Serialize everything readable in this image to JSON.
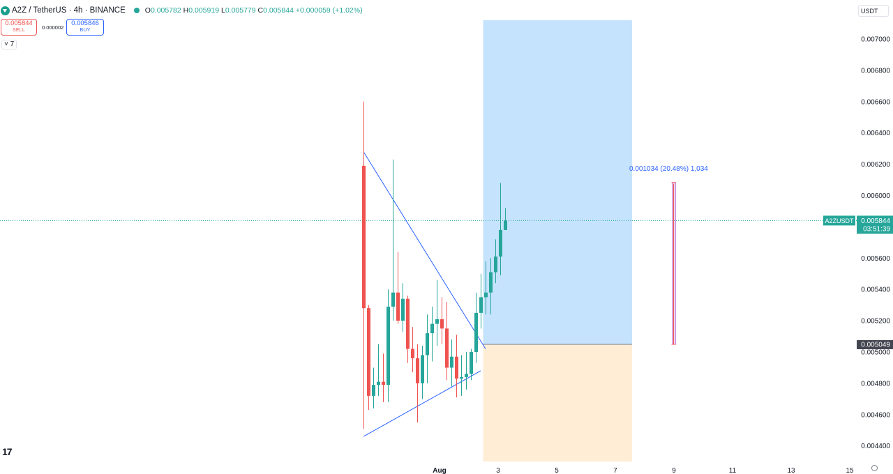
{
  "header": {
    "symbol": "A2Z / TetherUS · 4h · BINANCE",
    "o_label": "O",
    "o": "0.005782",
    "h_label": "H",
    "h": "0.005919",
    "l_label": "L",
    "l": "0.005779",
    "c_label": "C",
    "c": "0.005844",
    "change": "+0.000059 (+1.02%)"
  },
  "trade": {
    "sell_price": "0.005844",
    "sell_label": "SELL",
    "spread": "0.000002",
    "buy_price": "0.005846",
    "buy_label": "BUY"
  },
  "indicators_toggle": "˅ 7",
  "currency_button": "USDT",
  "price_axis": {
    "ticks": [
      {
        "v": 0.007,
        "label": "0.007000"
      },
      {
        "v": 0.0068,
        "label": "0.006800"
      },
      {
        "v": 0.0066,
        "label": "0.006600"
      },
      {
        "v": 0.0064,
        "label": "0.006400"
      },
      {
        "v": 0.0062,
        "label": "0.006200"
      },
      {
        "v": 0.006,
        "label": "0.006000"
      },
      {
        "v": 0.0056,
        "label": "0.005600"
      },
      {
        "v": 0.0054,
        "label": "0.005400"
      },
      {
        "v": 0.0052,
        "label": "0.005200"
      },
      {
        "v": 0.005,
        "label": "0.005000"
      },
      {
        "v": 0.0048,
        "label": "0.004800"
      },
      {
        "v": 0.0046,
        "label": "0.004600"
      },
      {
        "v": 0.0044,
        "label": "0.004400"
      }
    ],
    "current_symbol_badge": "A2ZUSDT",
    "current_price": "0.005844",
    "countdown": "03:51:39",
    "entry_price": "0.005049"
  },
  "time_axis": {
    "ticks": [
      {
        "t": 16,
        "label": "Aug"
      },
      {
        "t": 28,
        "label": "3"
      },
      {
        "t": 40,
        "label": "5"
      },
      {
        "t": 52,
        "label": "7"
      },
      {
        "t": 64,
        "label": "9"
      },
      {
        "t": 76,
        "label": "11"
      },
      {
        "t": 88,
        "label": "13"
      },
      {
        "t": 100,
        "label": "15"
      }
    ]
  },
  "measure_label": "0.001034 (20.48%) 1,034",
  "colors": {
    "up": "#26a69a",
    "down": "#ef5350",
    "trendline": "#2962ff",
    "profit_zone": "#bbdefb",
    "loss_zone": "#ffe0b2",
    "measure": "#9c27b0"
  },
  "chart_data": {
    "type": "candlestick",
    "candles": [
      [
        0.00619,
        0.0066,
        0.00451,
        0.00528
      ],
      [
        0.00528,
        0.0053,
        0.00463,
        0.00472
      ],
      [
        0.00472,
        0.0049,
        0.00464,
        0.00479
      ],
      [
        0.00479,
        0.00505,
        0.00472,
        0.00481
      ],
      [
        0.00481,
        0.00499,
        0.00468,
        0.00479
      ],
      [
        0.00479,
        0.0054,
        0.00468,
        0.00529
      ],
      [
        0.00529,
        0.00623,
        0.0052,
        0.00538
      ],
      [
        0.00538,
        0.00564,
        0.00518,
        0.0052
      ],
      [
        0.0052,
        0.00544,
        0.00513,
        0.00534
      ],
      [
        0.00534,
        0.00536,
        0.00493,
        0.00502
      ],
      [
        0.00502,
        0.00516,
        0.00487,
        0.00496
      ],
      [
        0.00496,
        0.00505,
        0.00455,
        0.0048
      ],
      [
        0.0048,
        0.00504,
        0.0047,
        0.00498
      ],
      [
        0.00498,
        0.00524,
        0.0048,
        0.00512
      ],
      [
        0.00512,
        0.00529,
        0.00494,
        0.00518
      ],
      [
        0.00518,
        0.00546,
        0.00504,
        0.00521
      ],
      [
        0.00521,
        0.00535,
        0.00505,
        0.00515
      ],
      [
        0.00515,
        0.00532,
        0.00482,
        0.0049
      ],
      [
        0.0049,
        0.00508,
        0.00478,
        0.00497
      ],
      [
        0.00497,
        0.00511,
        0.00471,
        0.00483
      ],
      [
        0.00483,
        0.00498,
        0.00472,
        0.00484
      ],
      [
        0.00484,
        0.005,
        0.00476,
        0.00486
      ],
      [
        0.00486,
        0.00502,
        0.00482,
        0.005
      ],
      [
        0.005,
        0.00538,
        0.00493,
        0.00525
      ],
      [
        0.00525,
        0.0055,
        0.00515,
        0.00535
      ],
      [
        0.00535,
        0.00558,
        0.00524,
        0.00538
      ],
      [
        0.00538,
        0.0056,
        0.00524,
        0.00551
      ],
      [
        0.00551,
        0.00572,
        0.00544,
        0.00561
      ],
      [
        0.00561,
        0.00608,
        0.00549,
        0.00578
      ],
      [
        0.00578,
        0.00592,
        0.00578,
        0.00584
      ]
    ],
    "trendlines": [
      {
        "from": [
          0,
          0.00628
        ],
        "to": [
          25,
          0.00502
        ]
      },
      {
        "from": [
          0,
          0.00446
        ],
        "to": [
          24,
          0.00488
        ]
      }
    ],
    "long_position": {
      "start": 24.5,
      "end": 55,
      "entry": 0.005049,
      "target": 0.00712,
      "stop": 0.0043
    },
    "price_range_measure": {
      "t": 63.5,
      "from": 0.005049,
      "to": 0.006083
    }
  }
}
